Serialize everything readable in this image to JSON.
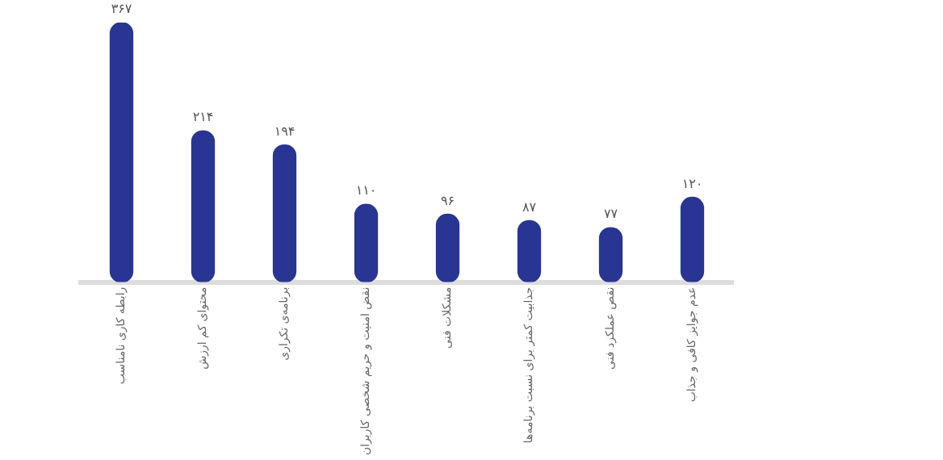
{
  "chart_data": {
    "type": "bar",
    "categories": [
      "رابطه کاری نامناسب",
      "محتوای کم ارزش",
      "برنامه‌ی تکراری",
      "نقض امنیت و حریم شخصی کاربران",
      "مشکلات فنی",
      "جذابیت کمتر برای نسبت برنامه‌ها",
      "نقص عملکرد فنی",
      "عدم جوایز کافی و جذاب"
    ],
    "values": [
      367,
      214,
      194,
      110,
      96,
      87,
      77,
      120
    ],
    "value_labels": [
      "۳۶۷",
      "۲۱۴",
      "۱۹۴",
      "۱۱۰",
      "۹۶",
      "۸۷",
      "۷۷",
      "۱۲۰"
    ],
    "color": "#283593",
    "ylim": [
      0,
      367
    ],
    "tick_labels": "x",
    "grid": false
  }
}
